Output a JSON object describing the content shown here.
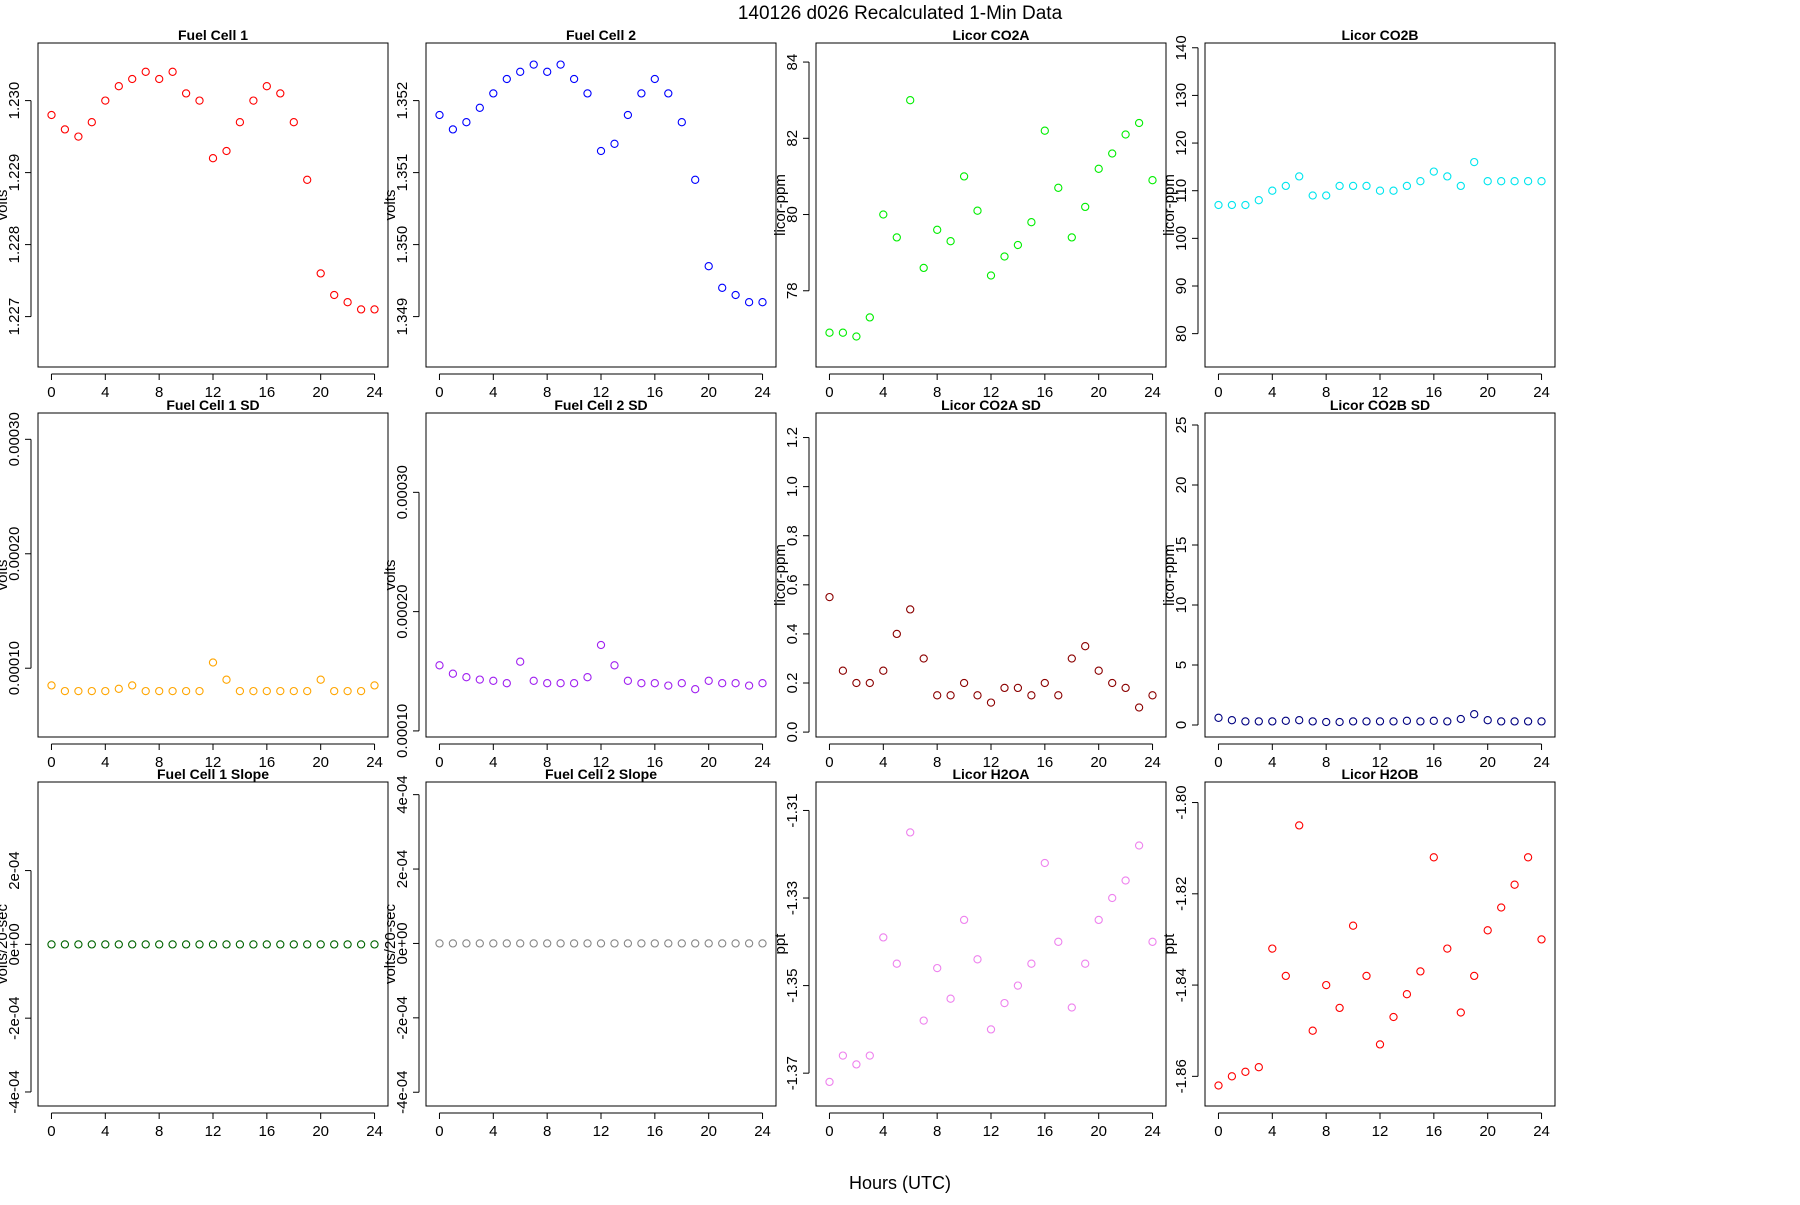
{
  "figure": {
    "title": "140126   d026   Recalculated 1-Min Data",
    "xlabel": "Hours (UTC)"
  },
  "chart_data": [
    {
      "type": "scatter",
      "title": "Fuel Cell 1",
      "ylabel": "volts",
      "color": "#ff0000",
      "xlim": [
        -1,
        25
      ],
      "ylim": [
        1.2263,
        1.2308
      ],
      "xticks": [
        0,
        4,
        8,
        12,
        16,
        20,
        24
      ],
      "xtick_labels": [
        "0",
        "4",
        "8",
        "12",
        "16",
        "20",
        "24"
      ],
      "yticks": [
        1.227,
        1.228,
        1.229,
        1.23
      ],
      "ytick_labels": [
        "1.227",
        "1.228",
        "1.229",
        "1.230"
      ],
      "x": [
        0,
        1,
        2,
        3,
        4,
        5,
        6,
        7,
        8,
        9,
        10,
        11,
        12,
        13,
        14,
        15,
        16,
        17,
        18,
        19,
        20,
        21,
        22,
        23,
        24
      ],
      "y": [
        1.2298,
        1.2296,
        1.2295,
        1.2297,
        1.23,
        1.2302,
        1.2303,
        1.2304,
        1.2303,
        1.2304,
        1.2301,
        1.23,
        1.2292,
        1.2293,
        1.2297,
        1.23,
        1.2302,
        1.2301,
        1.2297,
        1.2289,
        1.2276,
        1.2273,
        1.2272,
        1.2271,
        1.2271
      ]
    },
    {
      "type": "scatter",
      "title": "Fuel Cell 2",
      "ylabel": "volts",
      "color": "#0000ff",
      "xlim": [
        -1,
        25
      ],
      "ylim": [
        1.3483,
        1.3528
      ],
      "xticks": [
        0,
        4,
        8,
        12,
        16,
        20,
        24
      ],
      "xtick_labels": [
        "0",
        "4",
        "8",
        "12",
        "16",
        "20",
        "24"
      ],
      "yticks": [
        1.349,
        1.35,
        1.351,
        1.352
      ],
      "ytick_labels": [
        "1.349",
        "1.350",
        "1.351",
        "1.352"
      ],
      "x": [
        0,
        1,
        2,
        3,
        4,
        5,
        6,
        7,
        8,
        9,
        10,
        11,
        12,
        13,
        14,
        15,
        16,
        17,
        18,
        19,
        20,
        21,
        22,
        23,
        24
      ],
      "y": [
        1.3518,
        1.3516,
        1.3517,
        1.3519,
        1.3521,
        1.3523,
        1.3524,
        1.3525,
        1.3524,
        1.3525,
        1.3523,
        1.3521,
        1.3513,
        1.3514,
        1.3518,
        1.3521,
        1.3523,
        1.3521,
        1.3517,
        1.3509,
        1.3497,
        1.3494,
        1.3493,
        1.3492,
        1.3492
      ]
    },
    {
      "type": "scatter",
      "title": "Licor CO2A",
      "ylabel": "licor-ppm",
      "color": "#00ee00",
      "xlim": [
        -1,
        25
      ],
      "ylim": [
        76.0,
        84.5
      ],
      "xticks": [
        0,
        4,
        8,
        12,
        16,
        20,
        24
      ],
      "xtick_labels": [
        "0",
        "4",
        "8",
        "12",
        "16",
        "20",
        "24"
      ],
      "yticks": [
        78,
        80,
        82,
        84
      ],
      "ytick_labels": [
        "78",
        "80",
        "82",
        "84"
      ],
      "x": [
        0,
        1,
        2,
        3,
        4,
        5,
        6,
        7,
        8,
        9,
        10,
        11,
        12,
        13,
        14,
        15,
        16,
        17,
        18,
        19,
        20,
        21,
        22,
        23,
        24
      ],
      "y": [
        76.9,
        76.9,
        76.8,
        77.3,
        80.0,
        79.4,
        83.0,
        78.6,
        79.6,
        79.3,
        81.0,
        80.1,
        78.4,
        78.9,
        79.2,
        79.8,
        82.2,
        80.7,
        79.4,
        80.2,
        81.2,
        81.6,
        82.1,
        82.4,
        80.9
      ]
    },
    {
      "type": "scatter",
      "title": "Licor CO2B",
      "ylabel": "licor-ppm",
      "color": "#00e5ee",
      "xlim": [
        -1,
        25
      ],
      "ylim": [
        73,
        141
      ],
      "xticks": [
        0,
        4,
        8,
        12,
        16,
        20,
        24
      ],
      "xtick_labels": [
        "0",
        "4",
        "8",
        "12",
        "16",
        "20",
        "24"
      ],
      "yticks": [
        80,
        90,
        100,
        110,
        120,
        130,
        140
      ],
      "ytick_labels": [
        "80",
        "90",
        "100",
        "110",
        "120",
        "130",
        "140"
      ],
      "x": [
        0,
        1,
        2,
        3,
        4,
        5,
        6,
        7,
        8,
        9,
        10,
        11,
        12,
        13,
        14,
        15,
        16,
        17,
        18,
        19,
        20,
        21,
        22,
        23,
        24
      ],
      "y": [
        107,
        107,
        107,
        108,
        110,
        111,
        113,
        109,
        109,
        111,
        111,
        111,
        110,
        110,
        111,
        112,
        114,
        113,
        111,
        116,
        112,
        112,
        112,
        112,
        112
      ]
    },
    {
      "type": "scatter",
      "title": "Fuel Cell 1 SD",
      "ylabel": "volts",
      "color": "#ffa500",
      "xlim": [
        -1,
        25
      ],
      "ylim": [
        3.99e-05,
        0.000323
      ],
      "xticks": [
        0,
        4,
        8,
        12,
        16,
        20,
        24
      ],
      "xtick_labels": [
        "0",
        "4",
        "8",
        "12",
        "16",
        "20",
        "24"
      ],
      "yticks": [
        0.0001,
        0.0002,
        0.0003
      ],
      "ytick_labels": [
        "0.00010",
        "0.00020",
        "0.00030"
      ],
      "x": [
        0,
        1,
        2,
        3,
        4,
        5,
        6,
        7,
        8,
        9,
        10,
        11,
        12,
        13,
        14,
        15,
        16,
        17,
        18,
        19,
        20,
        21,
        22,
        23,
        24
      ],
      "y": [
        8.5e-05,
        8e-05,
        8e-05,
        8e-05,
        8e-05,
        8.2e-05,
        8.5e-05,
        8e-05,
        8e-05,
        8e-05,
        8e-05,
        8e-05,
        0.000105,
        9e-05,
        8e-05,
        8e-05,
        8e-05,
        8e-05,
        8e-05,
        8e-05,
        9e-05,
        8e-05,
        8e-05,
        8e-05,
        8.5e-05
      ]
    },
    {
      "type": "scatter",
      "title": "Fuel Cell 2 SD",
      "ylabel": "volts",
      "color": "#a020f0",
      "xlim": [
        -1,
        25
      ],
      "ylim": [
        9.49e-05,
        0.0003665
      ],
      "xticks": [
        0,
        4,
        8,
        12,
        16,
        20,
        24
      ],
      "xtick_labels": [
        "0",
        "4",
        "8",
        "12",
        "16",
        "20",
        "24"
      ],
      "yticks": [
        0.0001,
        0.0002,
        0.0003
      ],
      "ytick_labels": [
        "0.00010",
        "0.00020",
        "0.00030"
      ],
      "x": [
        0,
        1,
        2,
        3,
        4,
        5,
        6,
        7,
        8,
        9,
        10,
        11,
        12,
        13,
        14,
        15,
        16,
        17,
        18,
        19,
        20,
        21,
        22,
        23,
        24
      ],
      "y": [
        0.000155,
        0.000148,
        0.000145,
        0.000143,
        0.000142,
        0.00014,
        0.000158,
        0.000142,
        0.00014,
        0.00014,
        0.00014,
        0.000145,
        0.000172,
        0.000155,
        0.000142,
        0.00014,
        0.00014,
        0.000138,
        0.00014,
        0.000135,
        0.000142,
        0.00014,
        0.00014,
        0.000138,
        0.00014
      ]
    },
    {
      "type": "scatter",
      "title": "Licor CO2A SD",
      "ylabel": "licor-ppm",
      "color": "#8b0000",
      "xlim": [
        -1,
        25
      ],
      "ylim": [
        -0.02,
        1.3
      ],
      "xticks": [
        0,
        4,
        8,
        12,
        16,
        20,
        24
      ],
      "xtick_labels": [
        "0",
        "4",
        "8",
        "12",
        "16",
        "20",
        "24"
      ],
      "yticks": [
        0,
        0.2,
        0.4,
        0.6,
        0.8,
        1.0,
        1.2
      ],
      "ytick_labels": [
        "0.0",
        "0.2",
        "0.4",
        "0.6",
        "0.8",
        "1.0",
        "1.2"
      ],
      "x": [
        0,
        1,
        2,
        3,
        4,
        5,
        6,
        7,
        8,
        9,
        10,
        11,
        12,
        13,
        14,
        15,
        16,
        17,
        18,
        19,
        20,
        21,
        22,
        23,
        24
      ],
      "y": [
        0.55,
        0.25,
        0.2,
        0.2,
        0.25,
        0.4,
        0.5,
        0.3,
        0.15,
        0.15,
        0.2,
        0.15,
        0.12,
        0.18,
        0.18,
        0.15,
        0.2,
        0.15,
        0.3,
        0.35,
        0.25,
        0.2,
        0.18,
        0.1,
        0.15
      ]
    },
    {
      "type": "scatter",
      "title": "Licor CO2B SD",
      "ylabel": "licor-ppm",
      "color": "#000080",
      "xlim": [
        -1,
        25
      ],
      "ylim": [
        -1,
        26
      ],
      "xticks": [
        0,
        4,
        8,
        12,
        16,
        20,
        24
      ],
      "xtick_labels": [
        "0",
        "4",
        "8",
        "12",
        "16",
        "20",
        "24"
      ],
      "yticks": [
        0,
        5,
        10,
        15,
        20,
        25
      ],
      "ytick_labels": [
        "0",
        "5",
        "10",
        "15",
        "20",
        "25"
      ],
      "x": [
        0,
        1,
        2,
        3,
        4,
        5,
        6,
        7,
        8,
        9,
        10,
        11,
        12,
        13,
        14,
        15,
        16,
        17,
        18,
        19,
        20,
        21,
        22,
        23,
        24
      ],
      "y": [
        0.6,
        0.4,
        0.3,
        0.3,
        0.3,
        0.35,
        0.4,
        0.3,
        0.25,
        0.25,
        0.3,
        0.3,
        0.3,
        0.3,
        0.35,
        0.3,
        0.35,
        0.3,
        0.5,
        0.9,
        0.4,
        0.3,
        0.3,
        0.3,
        0.3
      ]
    },
    {
      "type": "scatter",
      "title": "Fuel Cell 1 Slope",
      "ylabel": "volts/20-sec",
      "color": "#006400",
      "xlim": [
        -1,
        25
      ],
      "ylim": [
        -0.000438,
        0.00044
      ],
      "xticks": [
        0,
        4,
        8,
        12,
        16,
        20,
        24
      ],
      "xtick_labels": [
        "0",
        "4",
        "8",
        "12",
        "16",
        "20",
        "24"
      ],
      "yticks": [
        -0.0004,
        -0.0002,
        0,
        0.0002
      ],
      "ytick_labels": [
        "-4e-04",
        "-2e-04",
        "0e+00",
        "2e-04"
      ],
      "x": [
        0,
        1,
        2,
        3,
        4,
        5,
        6,
        7,
        8,
        9,
        10,
        11,
        12,
        13,
        14,
        15,
        16,
        17,
        18,
        19,
        20,
        21,
        22,
        23,
        24
      ],
      "y": [
        0,
        0,
        0,
        0,
        0,
        0,
        0,
        0,
        0,
        0,
        0,
        0,
        0,
        0,
        0,
        0,
        0,
        0,
        0,
        0,
        0,
        0,
        0,
        0,
        0
      ]
    },
    {
      "type": "scatter",
      "title": "Fuel Cell 2 Slope",
      "ylabel": "volts/20-sec",
      "color": "#888888",
      "xlim": [
        -1,
        25
      ],
      "ylim": [
        -0.000437,
        0.000434
      ],
      "xticks": [
        0,
        4,
        8,
        12,
        16,
        20,
        24
      ],
      "xtick_labels": [
        "0",
        "4",
        "8",
        "12",
        "16",
        "20",
        "24"
      ],
      "yticks": [
        -0.0004,
        -0.0002,
        0,
        0.0002,
        0.0004
      ],
      "ytick_labels": [
        "-4e-04",
        "-2e-04",
        "0e+00",
        "2e-04",
        "4e-04"
      ],
      "x": [
        0,
        1,
        2,
        3,
        4,
        5,
        6,
        7,
        8,
        9,
        10,
        11,
        12,
        13,
        14,
        15,
        16,
        17,
        18,
        19,
        20,
        21,
        22,
        23,
        24
      ],
      "y": [
        0,
        0,
        0,
        0,
        0,
        0,
        0,
        0,
        0,
        0,
        0,
        0,
        0,
        0,
        0,
        0,
        0,
        0,
        0,
        0,
        0,
        0,
        0,
        0,
        0
      ]
    },
    {
      "type": "scatter",
      "title": "Licor H2OA",
      "ylabel": "ppt",
      "color": "#ee82ee",
      "xlim": [
        -1,
        25
      ],
      "ylim": [
        -1.3775,
        -1.3035
      ],
      "xticks": [
        0,
        4,
        8,
        12,
        16,
        20,
        24
      ],
      "xtick_labels": [
        "0",
        "4",
        "8",
        "12",
        "16",
        "20",
        "24"
      ],
      "yticks": [
        -1.37,
        -1.35,
        -1.33,
        -1.31
      ],
      "ytick_labels": [
        "-1.37",
        "-1.35",
        "-1.33",
        "-1.31"
      ],
      "x": [
        0,
        1,
        2,
        3,
        4,
        5,
        6,
        7,
        8,
        9,
        10,
        11,
        12,
        13,
        14,
        15,
        16,
        17,
        18,
        19,
        20,
        21,
        22,
        23,
        24
      ],
      "y": [
        -1.372,
        -1.366,
        -1.368,
        -1.366,
        -1.339,
        -1.345,
        -1.315,
        -1.358,
        -1.346,
        -1.353,
        -1.335,
        -1.344,
        -1.36,
        -1.354,
        -1.35,
        -1.345,
        -1.322,
        -1.34,
        -1.355,
        -1.345,
        -1.335,
        -1.33,
        -1.326,
        -1.318,
        -1.34
      ]
    },
    {
      "type": "scatter",
      "title": "Licor H2OB",
      "ylabel": "ppt",
      "color": "#ff0000",
      "xlim": [
        -1,
        25
      ],
      "ylim": [
        -1.8665,
        -1.7955
      ],
      "xticks": [
        0,
        4,
        8,
        12,
        16,
        20,
        24
      ],
      "xtick_labels": [
        "0",
        "4",
        "8",
        "12",
        "16",
        "20",
        "24"
      ],
      "yticks": [
        -1.86,
        -1.84,
        -1.82,
        -1.8
      ],
      "ytick_labels": [
        "-1.86",
        "-1.84",
        "-1.82",
        "-1.80"
      ],
      "x": [
        0,
        1,
        2,
        3,
        4,
        5,
        6,
        7,
        8,
        9,
        10,
        11,
        12,
        13,
        14,
        15,
        16,
        17,
        18,
        19,
        20,
        21,
        22,
        23,
        24
      ],
      "y": [
        -1.862,
        -1.86,
        -1.859,
        -1.858,
        -1.832,
        -1.838,
        -1.805,
        -1.85,
        -1.84,
        -1.845,
        -1.827,
        -1.838,
        -1.853,
        -1.847,
        -1.842,
        -1.837,
        -1.812,
        -1.832,
        -1.846,
        -1.838,
        -1.828,
        -1.823,
        -1.818,
        -1.812,
        -1.83
      ]
    }
  ]
}
